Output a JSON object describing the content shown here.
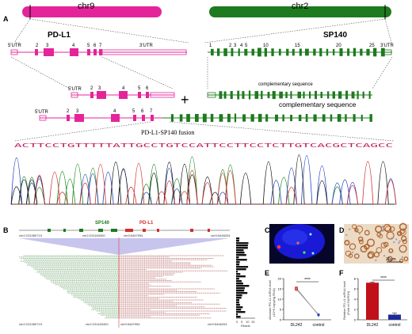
{
  "panel_labels": {
    "a": "A",
    "b": "B",
    "c": "C",
    "d": "D",
    "e": "E",
    "f": "F"
  },
  "chromosomes": {
    "left": "chr9",
    "right": "chr2"
  },
  "colors": {
    "pdl1": "#e4259a",
    "sp140": "#1e7a1e",
    "seq_text": "#c2185b"
  },
  "genes": {
    "pdl1": {
      "name": "PD-L1",
      "utr5": "5'UTR",
      "utr3": "3'UTR",
      "exons": [
        "2",
        "3",
        "4",
        "5",
        "6",
        "7"
      ]
    },
    "sp140": {
      "name": "SP140",
      "utr3": "3'UTR",
      "exons": [
        "1",
        "2",
        "3",
        "4",
        "5",
        "10",
        "15",
        "20",
        "25"
      ]
    }
  },
  "fusion": {
    "utr5": "5'UTR",
    "exons": [
      "2",
      "3",
      "4",
      "5",
      "6",
      "7"
    ],
    "plus": "+",
    "complementary1": "complementary sequence",
    "complementary2": "complementary sequence",
    "title": "PD-L1-SP140 fusion",
    "sequence": "ACTTCCTGTTTTTATTGCCTGTCCATTCCTTCCTCTTGTCACGCTCAGCC"
  },
  "panel_b": {
    "sp140_label": "SP140",
    "pdl1_label": "PD-L1",
    "coord_left": "chr2:231080719",
    "coord_mid_left": "chr2:231183400",
    "coord_mid_right": "chr9:5467954",
    "coord_right": "chr9:5446204",
    "reads_label": "Reads",
    "reads_ticks": [
      "0",
      "5",
      "10",
      "15"
    ]
  },
  "panel_d": {
    "scale": "20μm"
  },
  "chart_data": [
    {
      "type": "scatter",
      "panel": "E",
      "ylabel": "Absolute PD-L1 mRNA level",
      "ylabel2": "(10^6 copy/ng RNA)",
      "categories": [
        "DL242",
        "control"
      ],
      "series": [
        {
          "values": [
            15.5,
            2.2
          ]
        },
        {
          "values": [
            15.0,
            2.4
          ]
        },
        {
          "values": [
            14.8,
            2.5
          ]
        }
      ],
      "yticks": [
        "0",
        "5",
        "10",
        "15",
        "20"
      ],
      "ylim": [
        0,
        20
      ],
      "significance": "****"
    },
    {
      "type": "bar",
      "panel": "F",
      "ylabel": "Relative PD-L1 mRNA level",
      "ylabel2": "(Fold of GAPDH)",
      "categories": [
        "DL242",
        "control"
      ],
      "values": [
        7.2,
        1.0
      ],
      "errors": [
        0.15,
        0.3
      ],
      "colors": [
        "#c0101a",
        "#1f2a9a"
      ],
      "yticks": [
        "0",
        "2",
        "4",
        "6",
        "8"
      ],
      "ylim": [
        0,
        8
      ],
      "significance": "****"
    }
  ]
}
